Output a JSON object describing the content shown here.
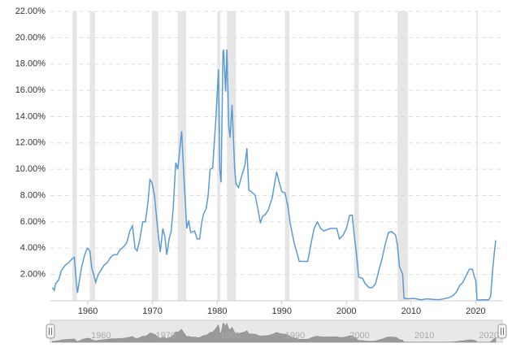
{
  "chart_data": {
    "type": "line",
    "x": [
      1954.5,
      1954.8,
      1955.0,
      1955.5,
      1955.9,
      1956.5,
      1957.0,
      1957.6,
      1957.9,
      1958.2,
      1958.4,
      1958.7,
      1959.0,
      1959.5,
      1959.9,
      1960.3,
      1960.6,
      1960.9,
      1961.2,
      1961.6,
      1962.0,
      1962.5,
      1963.0,
      1963.5,
      1964.0,
      1964.5,
      1965.0,
      1965.5,
      1966.0,
      1966.5,
      1966.9,
      1967.3,
      1967.6,
      1968.0,
      1968.5,
      1968.9,
      1969.3,
      1969.6,
      1969.9,
      1970.3,
      1970.6,
      1970.9,
      1971.2,
      1971.6,
      1971.9,
      1972.2,
      1972.6,
      1972.9,
      1973.2,
      1973.6,
      1973.9,
      1974.5,
      1974.9,
      1975.3,
      1975.6,
      1975.9,
      1976.5,
      1976.9,
      1977.3,
      1977.6,
      1977.9,
      1978.3,
      1978.6,
      1978.9,
      1979.3,
      1979.8,
      1980.2,
      1980.4,
      1980.6,
      1980.9,
      1981.0,
      1981.3,
      1981.5,
      1981.8,
      1982.0,
      1982.3,
      1982.7,
      1982.9,
      1983.3,
      1983.8,
      1984.3,
      1984.6,
      1984.9,
      1985.3,
      1985.9,
      1986.3,
      1986.7,
      1987.0,
      1987.5,
      1987.9,
      1988.5,
      1989.2,
      1989.6,
      1990.0,
      1990.5,
      1990.9,
      1991.3,
      1991.9,
      1992.3,
      1992.7,
      1993.5,
      1994.0,
      1994.5,
      1995.0,
      1995.5,
      1996.0,
      1996.5,
      1997.5,
      1998.5,
      1998.9,
      1999.5,
      2000.0,
      2000.5,
      2000.9,
      2001.2,
      2001.5,
      2001.9,
      2002.5,
      2002.9,
      2003.5,
      2004.0,
      2004.5,
      2005.0,
      2005.5,
      2006.0,
      2006.5,
      2007.0,
      2007.6,
      2007.9,
      2008.2,
      2008.7,
      2008.9,
      2009.5,
      2010.5,
      2011.5,
      2012.5,
      2013.5,
      2014.5,
      2015.9,
      2016.5,
      2017.0,
      2017.5,
      2018.0,
      2018.5,
      2019.0,
      2019.5,
      2019.8,
      2020.0,
      2020.2,
      2021.0,
      2022.0,
      2022.3,
      2022.6,
      2022.9,
      2023.1
    ],
    "values": [
      1.0,
      0.8,
      1.3,
      1.6,
      2.3,
      2.7,
      2.9,
      3.2,
      3.3,
      1.5,
      0.6,
      1.6,
      2.5,
      3.5,
      4.0,
      3.8,
      2.5,
      2.0,
      1.4,
      2.0,
      2.3,
      2.7,
      2.9,
      3.3,
      3.5,
      3.5,
      3.9,
      4.1,
      4.4,
      5.3,
      5.7,
      4.0,
      3.8,
      4.6,
      6.0,
      6.0,
      7.5,
      9.2,
      9.0,
      8.0,
      6.5,
      5.0,
      3.7,
      5.5,
      4.9,
      3.5,
      4.8,
      5.3,
      7.0,
      10.5,
      10.0,
      12.9,
      9.0,
      5.5,
      6.1,
      5.2,
      5.3,
      4.7,
      4.7,
      5.9,
      6.6,
      7.0,
      8.0,
      10.0,
      10.1,
      13.8,
      17.6,
      10.0,
      9.0,
      18.9,
      19.1,
      15.9,
      19.1,
      13.3,
      12.4,
      14.9,
      10.1,
      8.9,
      8.6,
      9.5,
      10.3,
      11.6,
      8.4,
      8.3,
      8.0,
      7.0,
      5.9,
      6.4,
      6.6,
      6.9,
      7.8,
      9.8,
      9.0,
      8.3,
      8.2,
      7.3,
      5.9,
      4.4,
      3.7,
      3.0,
      3.0,
      3.0,
      4.3,
      5.5,
      6.0,
      5.5,
      5.3,
      5.5,
      5.5,
      4.7,
      5.0,
      5.5,
      6.5,
      6.5,
      5.0,
      3.8,
      1.8,
      1.7,
      1.3,
      1.0,
      1.0,
      1.3,
      2.3,
      3.2,
      4.3,
      5.2,
      5.25,
      5.0,
      4.2,
      2.6,
      2.0,
      0.2,
      0.15,
      0.18,
      0.08,
      0.15,
      0.1,
      0.09,
      0.24,
      0.4,
      0.66,
      1.15,
      1.4,
      1.9,
      2.4,
      2.4,
      1.8,
      1.55,
      0.05,
      0.08,
      0.08,
      0.33,
      2.3,
      3.8,
      4.6
    ],
    "color": "#5b9bd5",
    "recessions": [
      [
        1957.6,
        1958.3
      ],
      [
        1960.3,
        1961.1
      ],
      [
        1969.9,
        1970.9
      ],
      [
        1973.9,
        1975.2
      ],
      [
        1980.0,
        1980.5
      ],
      [
        1981.5,
        1982.9
      ],
      [
        1990.5,
        1991.2
      ],
      [
        2001.2,
        2001.9
      ],
      [
        2007.9,
        2009.5
      ],
      [
        2020.1,
        2020.3
      ]
    ],
    "xlim": [
      1954.2,
      2024.1
    ],
    "xticks": [
      1960,
      1970,
      1980,
      1990,
      2000,
      2010,
      2020
    ],
    "ylim": [
      0,
      22
    ],
    "yticks": [
      {
        "value": 2,
        "label": "2.00%"
      },
      {
        "value": 4,
        "label": "4.00%"
      },
      {
        "value": 6,
        "label": "6.00%"
      },
      {
        "value": 8,
        "label": "8.00%"
      },
      {
        "value": 10,
        "label": "10.00%"
      },
      {
        "value": 12,
        "label": "12.00%"
      },
      {
        "value": 14,
        "label": "14.00%"
      },
      {
        "value": 16,
        "label": "16.00%"
      },
      {
        "value": 18,
        "label": "18.00%"
      },
      {
        "value": 20,
        "label": "20.00%"
      },
      {
        "value": 22,
        "label": "22.00%"
      }
    ],
    "grid": true
  }
}
